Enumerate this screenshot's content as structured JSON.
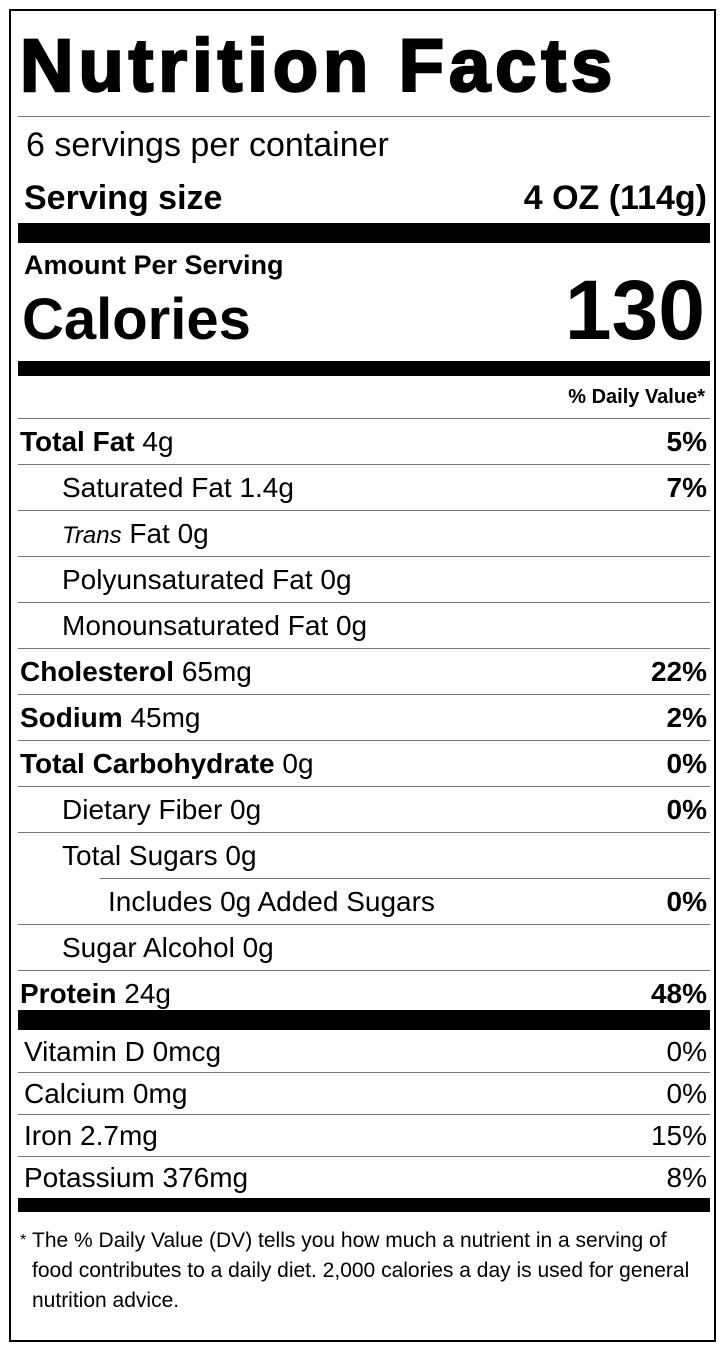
{
  "title": "Nutrition Facts",
  "servings": "6 servings per container",
  "serving_size": {
    "label": "Serving size",
    "value": "4 OZ (114g)"
  },
  "amount_per_serving": "Amount Per Serving",
  "calories": {
    "label": "Calories",
    "value": "130"
  },
  "daily_value_header": "% Daily Value*",
  "nutrients": [
    {
      "name": "Total Fat",
      "amount": "4g",
      "dv": "5%"
    },
    {
      "name": "Saturated Fat",
      "amount": "1.4g",
      "dv": "7%"
    },
    {
      "prefix": "Trans",
      "name": "Fat",
      "amount": "0g"
    },
    {
      "name": "Polyunsaturated Fat",
      "amount": "0g"
    },
    {
      "name": "Monounsaturated Fat",
      "amount": "0g"
    },
    {
      "name": "Cholesterol",
      "amount": "65mg",
      "dv": "22%"
    },
    {
      "name": "Sodium",
      "amount": "45mg",
      "dv": "2%"
    },
    {
      "name": "Total Carbohydrate",
      "amount": "0g",
      "dv": "0%"
    },
    {
      "name": "Dietary Fiber",
      "amount": "0g",
      "dv": "0%"
    },
    {
      "name": "Total Sugars",
      "amount": "0g"
    },
    {
      "name": "Includes 0g Added Sugars",
      "dv": "0%"
    },
    {
      "name": "Sugar Alcohol",
      "amount": "0g"
    },
    {
      "name": "Protein",
      "amount": "24g",
      "dv": "48%"
    }
  ],
  "vitamins": [
    {
      "name": "Vitamin D",
      "amount": "0mcg",
      "dv": "0%"
    },
    {
      "name": "Calcium",
      "amount": "0mg",
      "dv": "0%"
    },
    {
      "name": "Iron",
      "amount": "2.7mg",
      "dv": "15%"
    },
    {
      "name": "Potassium",
      "amount": "376mg",
      "dv": "8%"
    }
  ],
  "footnote": {
    "marker": "*",
    "text": "The % Daily Value (DV) tells you how much a nutrient in a serving of food contributes to a daily diet. 2,000 calories a day is used for general nutrition advice."
  }
}
